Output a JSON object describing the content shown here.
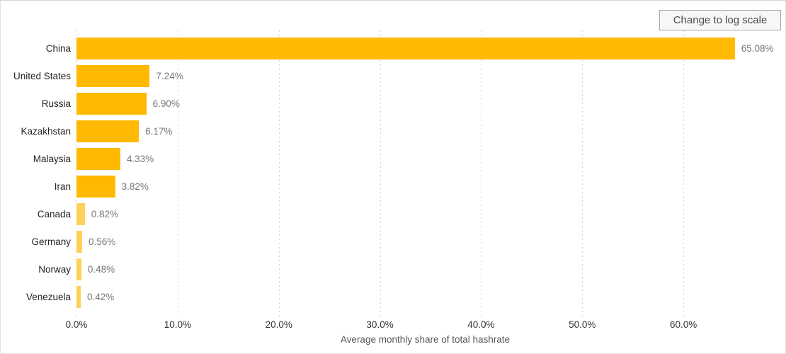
{
  "toolbar": {
    "log_scale_button": "Change to log scale"
  },
  "chart_data": {
    "type": "bar",
    "orientation": "horizontal",
    "title": "",
    "categories": [
      "China",
      "United States",
      "Russia",
      "Kazakhstan",
      "Malaysia",
      "Iran",
      "Canada",
      "Germany",
      "Norway",
      "Venezuela"
    ],
    "values": [
      65.08,
      7.24,
      6.9,
      6.17,
      4.33,
      3.82,
      0.82,
      0.56,
      0.48,
      0.42
    ],
    "value_labels": [
      "65.08%",
      "7.24%",
      "6.90%",
      "6.17%",
      "4.33%",
      "3.82%",
      "0.82%",
      "0.56%",
      "0.48%",
      "0.42%"
    ],
    "xlabel": "Average monthly share of total hashrate",
    "x_ticks": [
      "0.0%",
      "10.0%",
      "20.0%",
      "30.0%",
      "40.0%",
      "50.0%",
      "60.0%"
    ],
    "x_tick_values": [
      0,
      10,
      20,
      30,
      40,
      50,
      60
    ],
    "xlim": [
      0,
      70
    ],
    "grid": "vertical-dotted",
    "legend": "none",
    "colors": {
      "bar": "#FFB900",
      "bar_small": "#FFD159",
      "gridline": "#D2D2D2",
      "value_label": "#777777",
      "category_label": "#252423"
    },
    "small_bar_threshold": 1.0
  }
}
